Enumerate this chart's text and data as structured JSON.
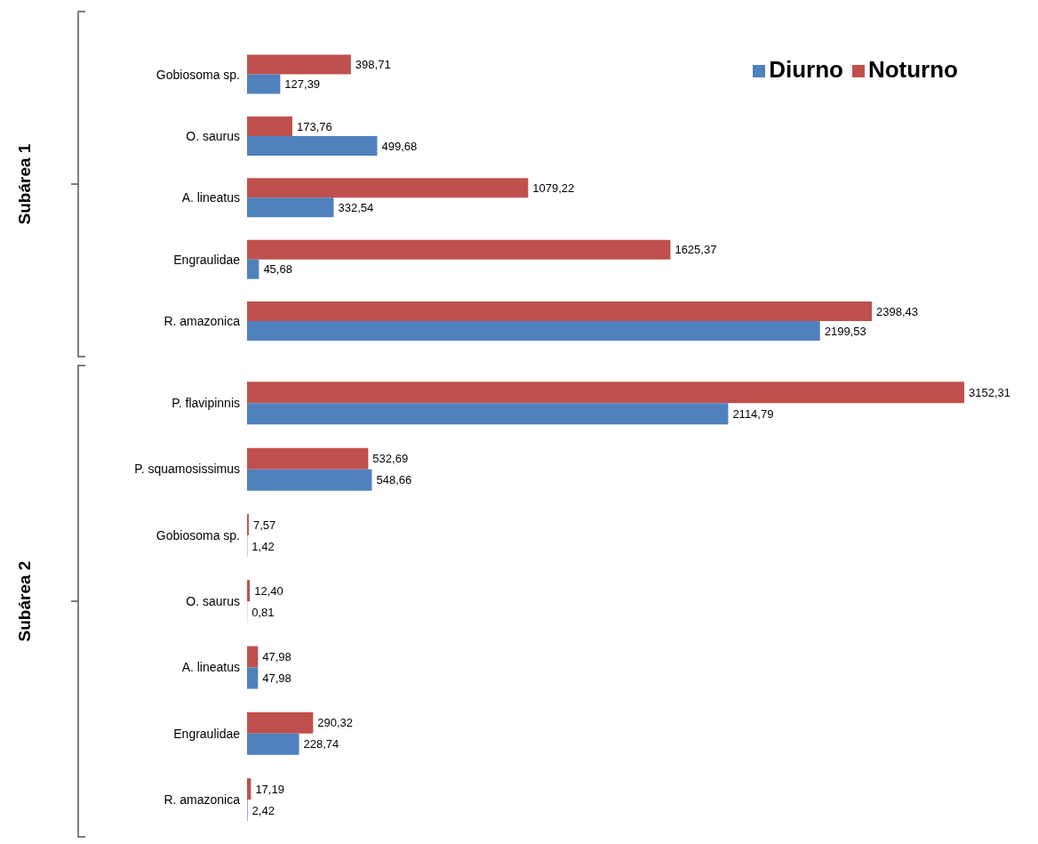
{
  "chart_data": [
    {
      "type": "bar",
      "orientation": "horizontal",
      "ylabel": "Subárea 1",
      "legend": "top right",
      "categories": [
        "Gobiosoma sp.",
        "O. saurus",
        "A. lineatus",
        "Engraulidae",
        "R. amazonica"
      ],
      "series": [
        {
          "name": "Noturno",
          "color": "#c0504d",
          "values": [
            398.71,
            173.76,
            1079.22,
            1625.37,
            2398.43
          ],
          "value_labels": [
            "398,71",
            "173,76",
            "1079,22",
            "1625,37",
            "2398,43"
          ]
        },
        {
          "name": "Diurno",
          "color": "#4f81bd",
          "values": [
            127.39,
            499.68,
            332.54,
            45.68,
            2199.53
          ],
          "value_labels": [
            "127,39",
            "499,68",
            "332,54",
            "45,68",
            "2199,53"
          ]
        }
      ]
    },
    {
      "type": "bar",
      "orientation": "horizontal",
      "ylabel": "Subárea 2",
      "categories": [
        "P. flavipinnis",
        "P. squamosissimus",
        "Gobiosoma sp.",
        "O. saurus",
        "A. lineatus",
        "Engraulidae",
        "R. amazonica"
      ],
      "series": [
        {
          "color": "#c0504d",
          "values": [
            3152.31,
            532.69,
            7.57,
            12.4,
            47.98,
            290.32,
            17.19
          ],
          "value_labels": [
            "3152,31",
            "532,69",
            "7,57",
            "12,40",
            "47,98",
            "290,32",
            "17,19"
          ]
        },
        {
          "color": "#4f81bd",
          "values": [
            2114.79,
            548.66,
            1.42,
            0.81,
            47.98,
            228.74,
            2.42
          ],
          "value_labels": [
            "2114,79",
            "548,66",
            "1,42",
            "0,81",
            "47,98",
            "228,74",
            "2,42"
          ]
        }
      ]
    }
  ]
}
